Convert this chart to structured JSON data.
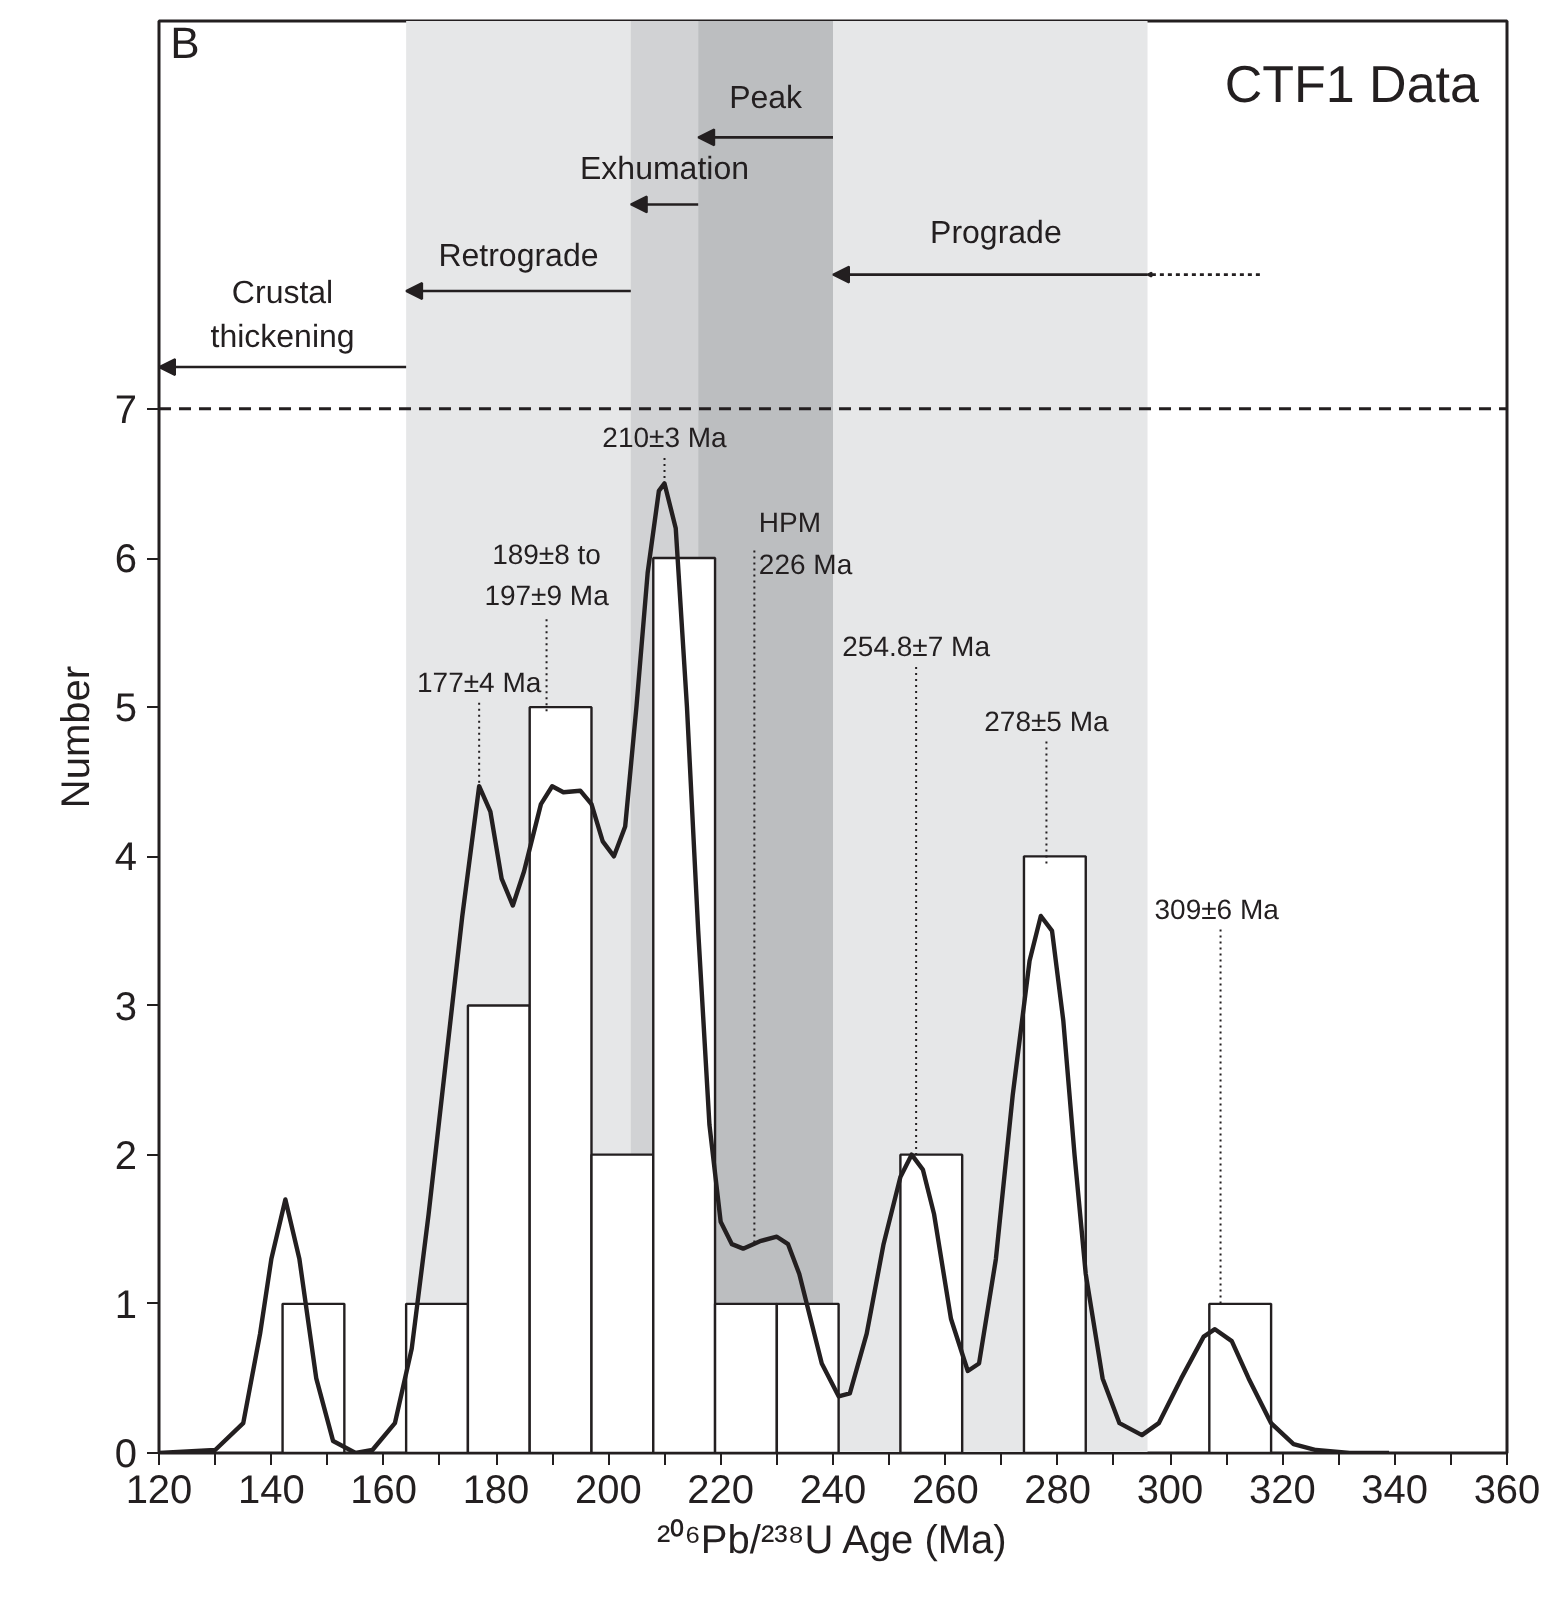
{
  "chart_data": {
    "type": "histogram",
    "title": "CTF1 Data",
    "xlabel": "²⁰⁶Pb/²³⁸U Age (Ma)",
    "ylabel": "Number",
    "bins": [
      142,
      153,
      164,
      175,
      186,
      197,
      208,
      219,
      230,
      241,
      252,
      263,
      274,
      285,
      296,
      307,
      318
    ],
    "values": [
      1,
      0,
      1,
      3,
      5,
      2,
      6,
      1,
      1,
      0,
      2,
      0,
      4,
      0,
      0,
      1
    ],
    "color": "#ffffff",
    "series": [
      {
        "type": "line",
        "color": "#231f20",
        "x": [
          120,
          130,
          135,
          138,
          140,
          142.5,
          145,
          148,
          151,
          155,
          158,
          162,
          165,
          168,
          171,
          174,
          177,
          179,
          181,
          183,
          185,
          188,
          190,
          192,
          195,
          197,
          199,
          201,
          203,
          205,
          207,
          209,
          210,
          212,
          214,
          216,
          218,
          220,
          222,
          224,
          227,
          230,
          232,
          234,
          236,
          238,
          241,
          243,
          246,
          249,
          252,
          254,
          256,
          258,
          261,
          264,
          266,
          269,
          272,
          275,
          277,
          279,
          281,
          283,
          285,
          288,
          291,
          295,
          298,
          302,
          306,
          308,
          311,
          314,
          318,
          322,
          326,
          332,
          339
        ],
        "values": [
          0,
          0.02,
          0.2,
          0.8,
          1.3,
          1.7,
          1.3,
          0.5,
          0.08,
          0,
          0.02,
          0.2,
          0.7,
          1.6,
          2.6,
          3.6,
          4.47,
          4.3,
          3.85,
          3.67,
          3.9,
          4.35,
          4.47,
          4.43,
          4.44,
          4.35,
          4.1,
          4.0,
          4.2,
          5.0,
          5.9,
          6.45,
          6.5,
          6.2,
          5.0,
          3.5,
          2.2,
          1.55,
          1.4,
          1.37,
          1.42,
          1.45,
          1.4,
          1.2,
          0.9,
          0.6,
          0.38,
          0.4,
          0.8,
          1.4,
          1.85,
          2.0,
          1.9,
          1.6,
          0.9,
          0.55,
          0.6,
          1.3,
          2.4,
          3.3,
          3.6,
          3.5,
          2.9,
          2.0,
          1.2,
          0.5,
          0.2,
          0.12,
          0.2,
          0.5,
          0.78,
          0.83,
          0.75,
          0.5,
          0.2,
          0.06,
          0.02,
          0,
          0
        ]
      }
    ],
    "xlim": [
      120,
      360
    ],
    "xticks": [
      120,
      {
        "value": 130,
        "label": null
      },
      140,
      {
        "value": 150,
        "label": null
      },
      160,
      {
        "value": 170,
        "label": null
      },
      180,
      {
        "value": 190,
        "label": null
      },
      200,
      {
        "value": 210,
        "label": null
      },
      220,
      {
        "value": 230,
        "label": null
      },
      240,
      {
        "value": 250,
        "label": null
      },
      260,
      {
        "value": 270,
        "label": null
      },
      280,
      {
        "value": 290,
        "label": null
      },
      300,
      {
        "value": 310,
        "label": null
      },
      320,
      {
        "value": 330,
        "label": null
      },
      340,
      {
        "value": 350,
        "label": null
      },
      360
    ],
    "ylim": [
      0,
      9.6
    ],
    "yticks": [
      0,
      1,
      2,
      3,
      4,
      5,
      6,
      7
    ],
    "grid": false,
    "bands": [
      {
        "axis": "x",
        "from": 164,
        "to": 296,
        "label": null,
        "color": "#e6e7e8"
      },
      {
        "axis": "x",
        "from": 204,
        "to": 216,
        "label": null,
        "color": "#d1d2d4"
      },
      {
        "axis": "x",
        "from": 216,
        "to": 240,
        "label": null,
        "color": "#bcbec0"
      }
    ],
    "ref_lines": [
      {
        "axis": "y",
        "value": 7,
        "label": null,
        "color": "#231f20",
        "line_style": "dashed"
      }
    ],
    "annotations": [
      "B",
      {
        "text": "Peak",
        "x": 216,
        "y": 8.82
      },
      {
        "text": "Exhumation",
        "x": 204,
        "y": 8.37
      },
      {
        "text": "Retrograde",
        "x": 164,
        "y": 7.79
      },
      "Prograde",
      "Crustal\nthickening",
      {
        "text": "177±4 Ma",
        "x": 177,
        "y": 4.47
      },
      {
        "text": "189±8 to\n197±9 Ma",
        "x": 189,
        "y": 4.95
      },
      {
        "text": "210±3 Ma",
        "x": 210,
        "y": 6.5
      },
      {
        "text": "HPM\n226 Ma",
        "x": 226,
        "y": 1.4
      },
      {
        "text": "254.8±7 Ma",
        "x": 254.8,
        "y": 2
      },
      {
        "text": "278±5 Ma",
        "x": 278,
        "y": 3.95
      },
      {
        "text": "309±6  Ma",
        "x": 309,
        "y": 1
      }
    ]
  }
}
